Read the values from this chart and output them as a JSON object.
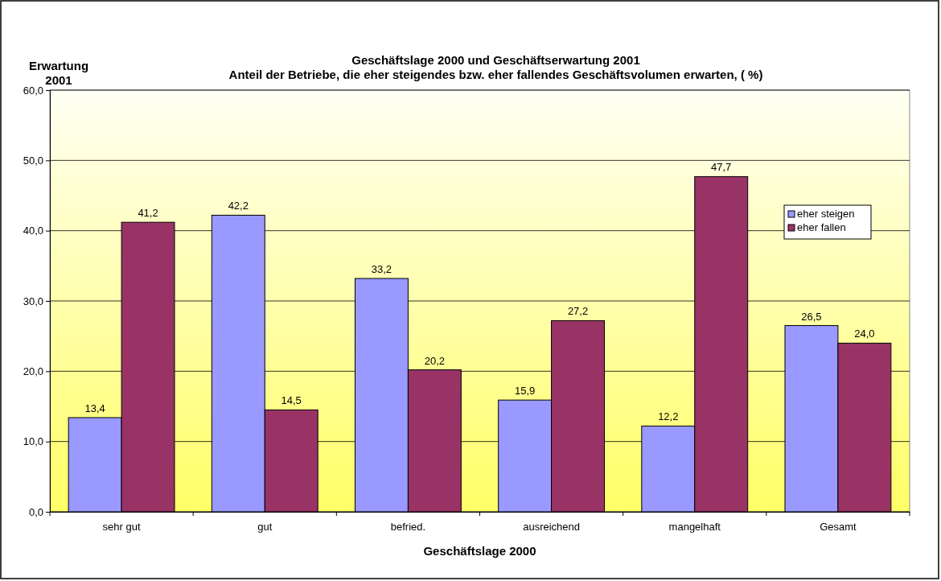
{
  "chart_data": {
    "type": "bar",
    "title": "Geschäftslage 2000 und Geschäftserwartung 2001",
    "subtitle": "Anteil der Betriebe, die eher steigendes bzw. eher fallendes Geschäftsvolumen erwarten, ( %)",
    "xlabel": "Geschäftslage 2000",
    "ylabel": "Erwartung 2001",
    "categories": [
      "sehr gut",
      "gut",
      "befried.",
      "ausreichend",
      "mangelhaft",
      "Gesamt"
    ],
    "series": [
      {
        "name": "eher steigen",
        "color": "#9999ff",
        "values": [
          13.4,
          42.2,
          33.2,
          15.9,
          12.2,
          26.5
        ],
        "value_labels": [
          "13,4",
          "42,2",
          "33,2",
          "15,9",
          "12,2",
          "26,5"
        ]
      },
      {
        "name": "eher fallen",
        "color": "#993366",
        "values": [
          41.2,
          14.5,
          20.2,
          27.2,
          47.7,
          24.0
        ],
        "value_labels": [
          "41,2",
          "14,5",
          "20,2",
          "27,2",
          "47,7",
          "24,0"
        ]
      }
    ],
    "ylim": [
      0,
      60
    ],
    "yticks": [
      {
        "value": 0,
        "label": "0,0"
      },
      {
        "value": 10,
        "label": "10,0"
      },
      {
        "value": 20,
        "label": "20,0"
      },
      {
        "value": 30,
        "label": "30,0"
      },
      {
        "value": 40,
        "label": "40,0"
      },
      {
        "value": 50,
        "label": "50,0"
      },
      {
        "value": 60,
        "label": "60,0"
      }
    ],
    "grid": "y",
    "legend": "top right"
  }
}
